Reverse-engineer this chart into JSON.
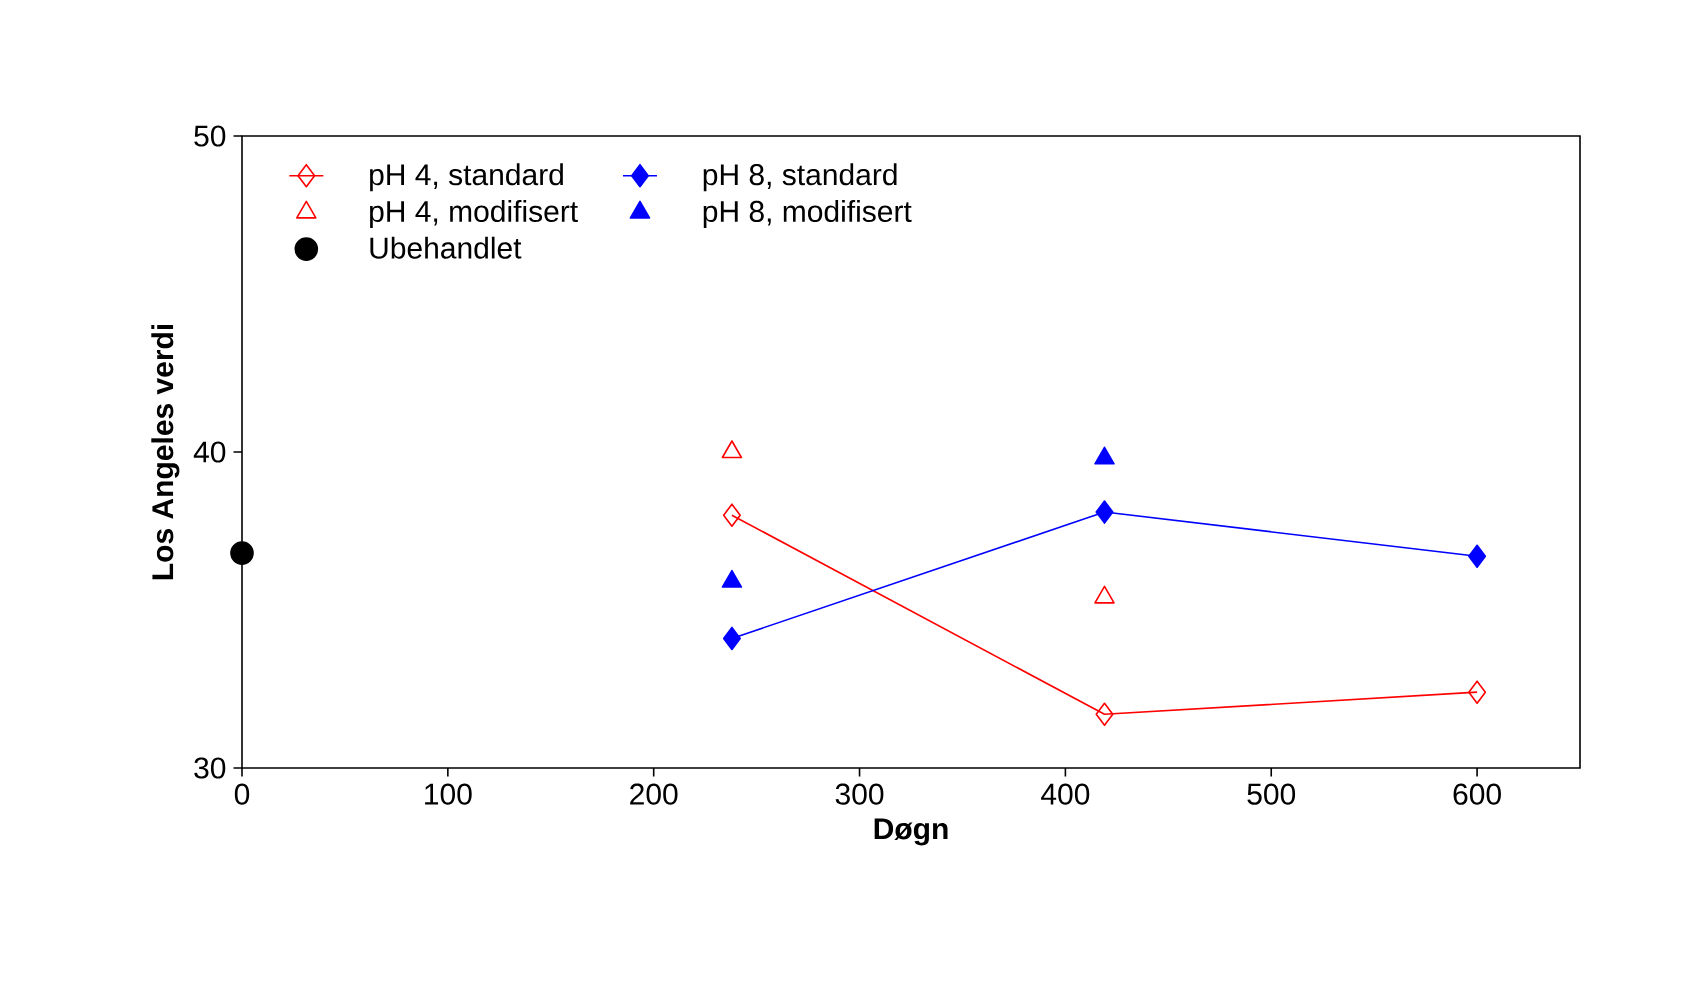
{
  "chart_data": {
    "type": "line",
    "xlabel": "Døgn",
    "ylabel": "Los Angeles verdi",
    "xlim": [
      0,
      650
    ],
    "ylim": [
      30,
      50
    ],
    "xticks": [
      0,
      100,
      200,
      300,
      400,
      500,
      600
    ],
    "yticks": [
      30,
      40,
      50
    ],
    "legend": "top left",
    "grid": false,
    "series": [
      {
        "name": "pH 4, standard",
        "color": "#ff0000",
        "marker": "diamond",
        "line_style": "solid",
        "x": [
          238,
          419,
          600
        ],
        "values": [
          38.0,
          31.7,
          32.4
        ]
      },
      {
        "name": "pH 8, standard",
        "color": "#0000ff",
        "marker": "diamond",
        "line_style": "solid",
        "x": [
          238,
          419,
          600
        ],
        "values": [
          34.1,
          38.1,
          36.7
        ]
      },
      {
        "name": "pH 4, modifisert",
        "type": "scatter",
        "color": "#ff0000",
        "marker": "triangle",
        "x": [
          238,
          419
        ],
        "values": [
          40.0,
          35.4
        ]
      },
      {
        "name": "pH 8, modifisert",
        "type": "scatter",
        "color": "#0000ff",
        "marker": "triangle",
        "x": [
          238,
          419
        ],
        "values": [
          35.9,
          39.8
        ]
      },
      {
        "name": "Ubehandlet",
        "type": "scatter",
        "color": "#000000",
        "marker": "circle",
        "x": [
          0
        ],
        "values": [
          36.8
        ]
      }
    ]
  }
}
